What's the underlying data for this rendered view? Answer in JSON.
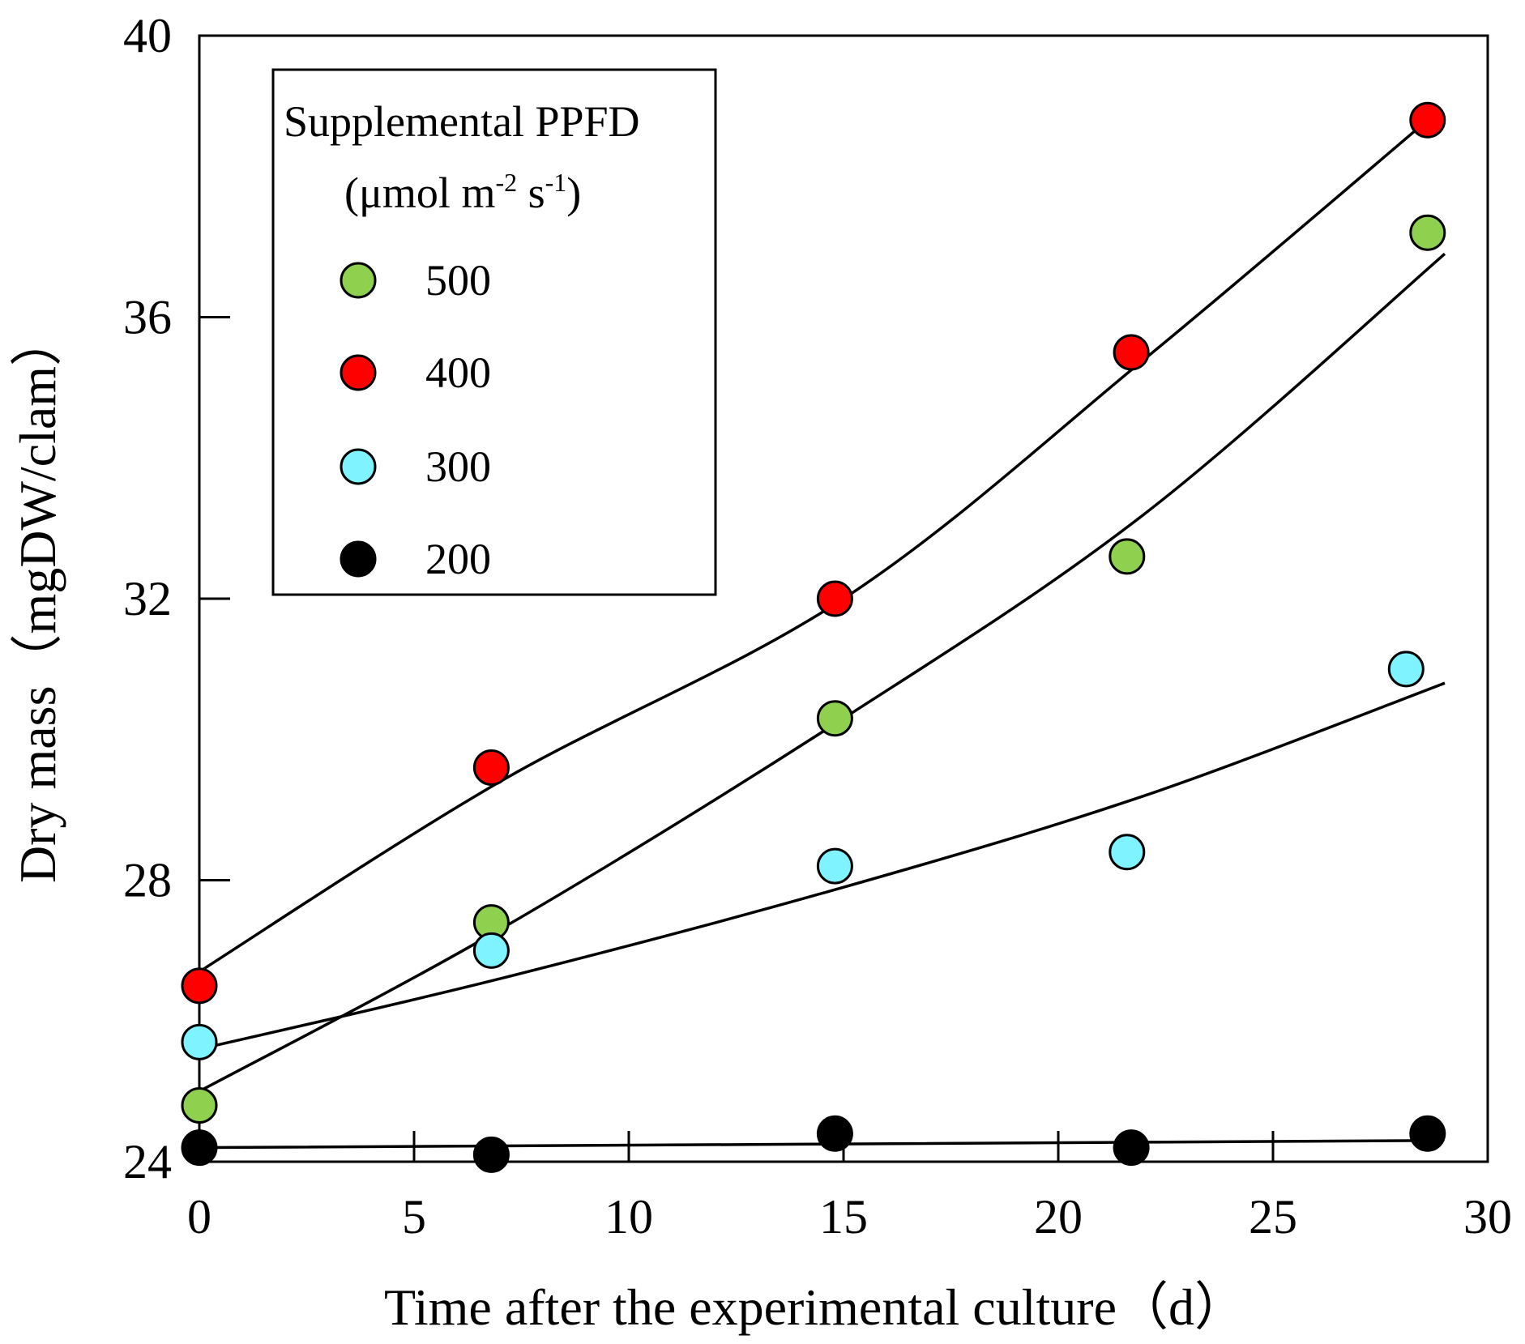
{
  "chart_data": {
    "type": "scatter",
    "title": "",
    "xlabel": "Time after the experimental culture（d）",
    "ylabel": "Dry mass（mgDW/clam）",
    "xlim": [
      0,
      30
    ],
    "ylim": [
      24,
      40
    ],
    "xticks": [
      "0",
      "5",
      "10",
      "15",
      "20",
      "25",
      "30"
    ],
    "yticks": [
      "24",
      "28",
      "32",
      "36",
      "40"
    ],
    "grid": false,
    "legend": {
      "position": "top-left",
      "title": "Supplemental PPFD",
      "units_prefix": "(μmol m",
      "units_exp1": "-2",
      "units_mid": " s",
      "units_exp2": "-1",
      "units_suffix": ")"
    },
    "series": [
      {
        "name": "500",
        "color": "#8fd14f",
        "x": [
          0,
          6.8,
          14.8,
          21.6,
          28.6
        ],
        "y": [
          24.8,
          27.4,
          30.3,
          32.6,
          37.2
        ],
        "fit": {
          "x": [
            0,
            7,
            15,
            22,
            29
          ],
          "y": [
            25.0,
            27.3,
            30.3,
            33.2,
            36.9
          ]
        }
      },
      {
        "name": "400",
        "color": "#ff0000",
        "x": [
          0,
          6.8,
          14.8,
          21.7,
          28.6
        ],
        "y": [
          26.5,
          29.6,
          32.0,
          35.5,
          38.8
        ],
        "fit": {
          "x": [
            0,
            7,
            15,
            22,
            28.6
          ],
          "y": [
            26.7,
            29.4,
            32.0,
            35.4,
            38.8
          ]
        }
      },
      {
        "name": "300",
        "color": "#7ff3ff",
        "x": [
          0,
          6.8,
          14.8,
          21.6,
          28.1
        ],
        "y": [
          25.7,
          27.0,
          28.2,
          28.4,
          31.0
        ],
        "fit": {
          "x": [
            0,
            7,
            15,
            22,
            29
          ],
          "y": [
            25.6,
            26.6,
            27.9,
            29.2,
            30.8
          ]
        }
      },
      {
        "name": "200",
        "color": "#000000",
        "x": [
          0,
          6.8,
          14.8,
          21.7,
          28.6
        ],
        "y": [
          24.2,
          24.1,
          24.4,
          24.2,
          24.4
        ],
        "fit": {
          "x": [
            0,
            28.6
          ],
          "y": [
            24.2,
            24.3
          ]
        }
      }
    ]
  }
}
